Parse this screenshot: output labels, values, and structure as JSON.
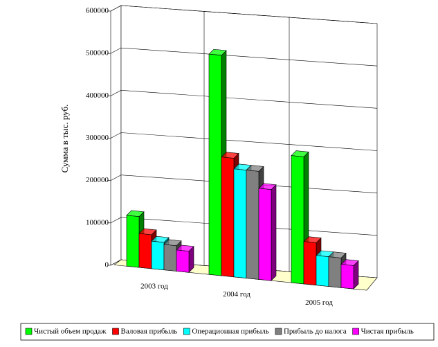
{
  "chart_data": {
    "type": "bar3d",
    "y_label": "Сумма в тыс. руб.",
    "categories": [
      "2003 год",
      "2004 год",
      "2005 год"
    ],
    "series": [
      {
        "name": "Чистый объем продаж",
        "color": "#00ff00",
        "values": [
          120000,
          520000,
          300000
        ]
      },
      {
        "name": "Валовая прибыль",
        "color": "#ff0000",
        "values": [
          80000,
          280000,
          100000
        ]
      },
      {
        "name": "Операционная прибыль",
        "color": "#00ffff",
        "values": [
          65000,
          255000,
          70000
        ]
      },
      {
        "name": "Прибыль до налога",
        "color": "#808080",
        "values": [
          60000,
          255000,
          70000
        ]
      },
      {
        "name": "Чистая прибыль",
        "color": "#ff00ff",
        "values": [
          50000,
          215000,
          55000
        ]
      }
    ],
    "ylim": [
      0,
      600000
    ],
    "yticks": [
      0,
      100000,
      200000,
      300000,
      400000,
      500000,
      600000
    ],
    "grid": true,
    "legend": "bottom"
  }
}
